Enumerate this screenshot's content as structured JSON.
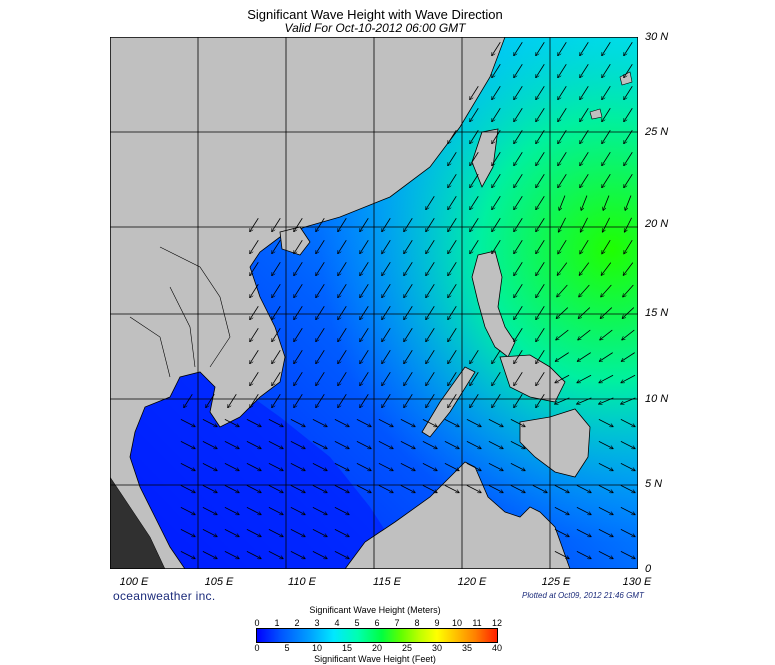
{
  "title": "Significant Wave Height with Wave Direction",
  "subtitle": "Valid For Oct-10-2012 06:00 GMT",
  "lat_labels": [
    "30 N",
    "25 N",
    "20 N",
    "15 N",
    "10 N",
    "5 N",
    "0"
  ],
  "lon_labels": [
    "100 E",
    "105 E",
    "110 E",
    "115 E",
    "120 E",
    "125 E",
    "130 E"
  ],
  "credit": "oceanweather inc.",
  "plotted": "Plotted at Oct09, 2012 21:46 GMT",
  "colorbar": {
    "title_meters": "Significant Wave Height (Meters)",
    "title_feet": "Significant Wave Height (Feet)",
    "meters_ticks": [
      "0",
      "1",
      "2",
      "3",
      "4",
      "5",
      "6",
      "7",
      "8",
      "9",
      "10",
      "11",
      "12"
    ],
    "feet_ticks": [
      "0",
      "5",
      "10",
      "15",
      "20",
      "25",
      "30",
      "35",
      "40"
    ]
  },
  "colors": {
    "land": "#c0c0c0",
    "ocean_low": "#0000ff",
    "ocean_mid": "#00b0ff",
    "ocean_high": "#00ff20"
  }
}
